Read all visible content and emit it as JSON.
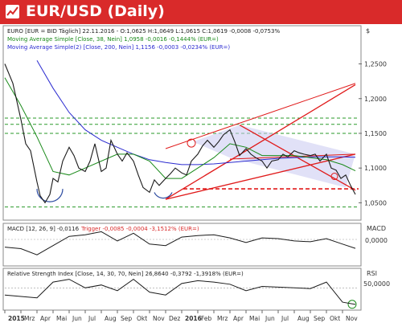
{
  "header": {
    "title": "EUR/USD (Daily)"
  },
  "colors": {
    "title_bar": "#d92a2a",
    "price_line": "#1a1a1a",
    "ma38": "#1a8a1a",
    "ma200": "#2b2bd0",
    "channel": "#e01a1a",
    "channel_fill": "#c8c8f0",
    "support": "#e01a1a",
    "green_dash": "#2a9a2a"
  },
  "chart_data": [
    {
      "type": "line",
      "panel": "price",
      "currency_label": "$",
      "legend": {
        "instrument": "EURO [EUR = BID Täglich] 22.11.2016 - O:1,0625 H:1,0649 L:1,0615 C:1,0619 -0,0008 -0,0753%",
        "ma38": "Moving Average Simple [Close, 38, Nein] 1,0958 -0,0016 -0,1444% (EUR=)",
        "ma200": "Moving Average Simple(2) [Close, 200, Nein] 1,1156 -0,0003 -0,0234% (EUR=)"
      },
      "y_ticks": [
        "1,2500",
        "1,2000",
        "1,1500",
        "1,1000",
        "1,0500"
      ],
      "ylim": [
        1.025,
        1.305
      ],
      "x_months": [
        "2015",
        "Mrz",
        "Apr",
        "Mai",
        "Jun",
        "Jul",
        "Aug",
        "Sep",
        "Okt",
        "Nov",
        "Dez",
        "2016",
        "Feb",
        "Mrz",
        "Apr",
        "Mai",
        "Jun",
        "Jul",
        "Aug",
        "Sep",
        "Okt",
        "Nov"
      ],
      "series": [
        {
          "name": "EURO",
          "x": [
            0,
            0.5,
            1,
            1.3,
            1.6,
            2,
            2.2,
            2.5,
            2.8,
            3,
            3.3,
            3.6,
            4,
            4.3,
            4.6,
            5,
            5.3,
            5.6,
            6,
            6.3,
            6.6,
            7,
            7.3,
            7.6,
            8,
            8.3,
            8.6,
            9,
            9.3,
            9.6,
            10,
            10.3,
            10.6,
            11,
            11.3,
            11.6,
            12,
            12.3,
            12.6,
            13,
            13.3,
            13.6,
            14,
            14.3,
            14.6,
            15,
            15.3,
            15.6,
            16,
            16.3,
            16.6,
            17,
            17.3,
            17.6,
            18,
            18.3,
            18.6,
            19,
            19.3,
            19.6,
            20,
            20.3,
            20.6,
            20.9,
            21.2,
            21.5,
            21.8
          ],
          "values": [
            1.25,
            1.222,
            1.17,
            1.135,
            1.125,
            1.08,
            1.06,
            1.05,
            1.062,
            1.085,
            1.08,
            1.11,
            1.13,
            1.118,
            1.1,
            1.095,
            1.11,
            1.135,
            1.095,
            1.1,
            1.14,
            1.12,
            1.11,
            1.122,
            1.11,
            1.09,
            1.072,
            1.065,
            1.083,
            1.075,
            1.085,
            1.092,
            1.1,
            1.093,
            1.09,
            1.11,
            1.12,
            1.132,
            1.14,
            1.13,
            1.138,
            1.148,
            1.155,
            1.138,
            1.118,
            1.128,
            1.12,
            1.115,
            1.11,
            1.1,
            1.11,
            1.112,
            1.12,
            1.116,
            1.125,
            1.122,
            1.12,
            1.118,
            1.12,
            1.11,
            1.12,
            1.1,
            1.097,
            1.085,
            1.09,
            1.075,
            1.062
          ]
        },
        {
          "name": "Moving Average Simple [Close, 38, Nein]",
          "x": [
            0,
            1,
            2,
            3,
            4,
            5,
            6,
            7,
            8,
            9,
            10,
            11,
            12,
            13,
            14,
            15,
            16,
            17,
            18,
            19,
            20,
            21,
            21.8
          ],
          "values": [
            1.23,
            1.19,
            1.145,
            1.095,
            1.09,
            1.1,
            1.11,
            1.12,
            1.12,
            1.11,
            1.085,
            1.085,
            1.1,
            1.115,
            1.135,
            1.13,
            1.118,
            1.118,
            1.118,
            1.115,
            1.112,
            1.105,
            1.096
          ]
        },
        {
          "name": "Moving Average Simple(2) [Close, 200, Nein]",
          "x": [
            2,
            3,
            4,
            5,
            6,
            7,
            8,
            9,
            10,
            11,
            12,
            13,
            14,
            15,
            16,
            17,
            18,
            19,
            20,
            21,
            21.8
          ],
          "values": [
            1.255,
            1.215,
            1.18,
            1.155,
            1.14,
            1.13,
            1.12,
            1.112,
            1.108,
            1.105,
            1.105,
            1.106,
            1.108,
            1.11,
            1.112,
            1.114,
            1.115,
            1.116,
            1.116,
            1.116,
            1.1156
          ]
        }
      ],
      "horizontal_levels": [
        {
          "name": "green-dash-1",
          "value": 1.172
        },
        {
          "name": "green-dash-2",
          "value": 1.163
        },
        {
          "name": "green-dash-3",
          "value": 1.15
        },
        {
          "name": "green-dash-4",
          "value": 1.044
        },
        {
          "name": "red-support",
          "value": 1.07
        }
      ]
    },
    {
      "type": "line",
      "panel": "macd",
      "legend": {
        "macd": "MACD [12, 26, 9] -0,0116",
        "trigger": "Trigger -0,0085 -0,0004 -3,1512% (EUR=)"
      },
      "axis_label": "MACD",
      "y_ticks": [
        "0,0000"
      ],
      "series": [
        {
          "name": "MACD",
          "x": [
            0,
            1,
            2,
            3,
            4,
            5,
            6,
            7,
            8,
            9,
            10,
            11,
            12,
            13,
            14,
            15,
            16,
            17,
            18,
            19,
            20,
            21,
            21.8
          ],
          "values": [
            -0.01,
            -0.012,
            -0.02,
            -0.008,
            0.004,
            0.006,
            0.01,
            -0.002,
            0.008,
            -0.006,
            -0.008,
            0.003,
            0.005,
            0.006,
            0.002,
            -0.004,
            0.002,
            0.001,
            -0.002,
            -0.003,
            0.001,
            -0.006,
            -0.0116
          ]
        }
      ]
    },
    {
      "type": "line",
      "panel": "rsi",
      "legend": {
        "rsi": "Relative Strength Index [Close, 14, 30, 70, Nein] 26,8640 -0,3792 -1,3918% (EUR=)"
      },
      "axis_label": "RSI",
      "y_ticks": [
        "50,0000"
      ],
      "series": [
        {
          "name": "RSI",
          "x": [
            0,
            1,
            2,
            3,
            4,
            5,
            6,
            7,
            8,
            9,
            10,
            11,
            12,
            13,
            14,
            15,
            16,
            17,
            18,
            19,
            20,
            21,
            21.8
          ],
          "values": [
            40,
            38,
            36,
            58,
            62,
            50,
            54,
            46,
            62,
            44,
            40,
            56,
            60,
            58,
            55,
            46,
            52,
            51,
            50,
            49,
            58,
            30,
            26.864
          ]
        }
      ]
    }
  ]
}
